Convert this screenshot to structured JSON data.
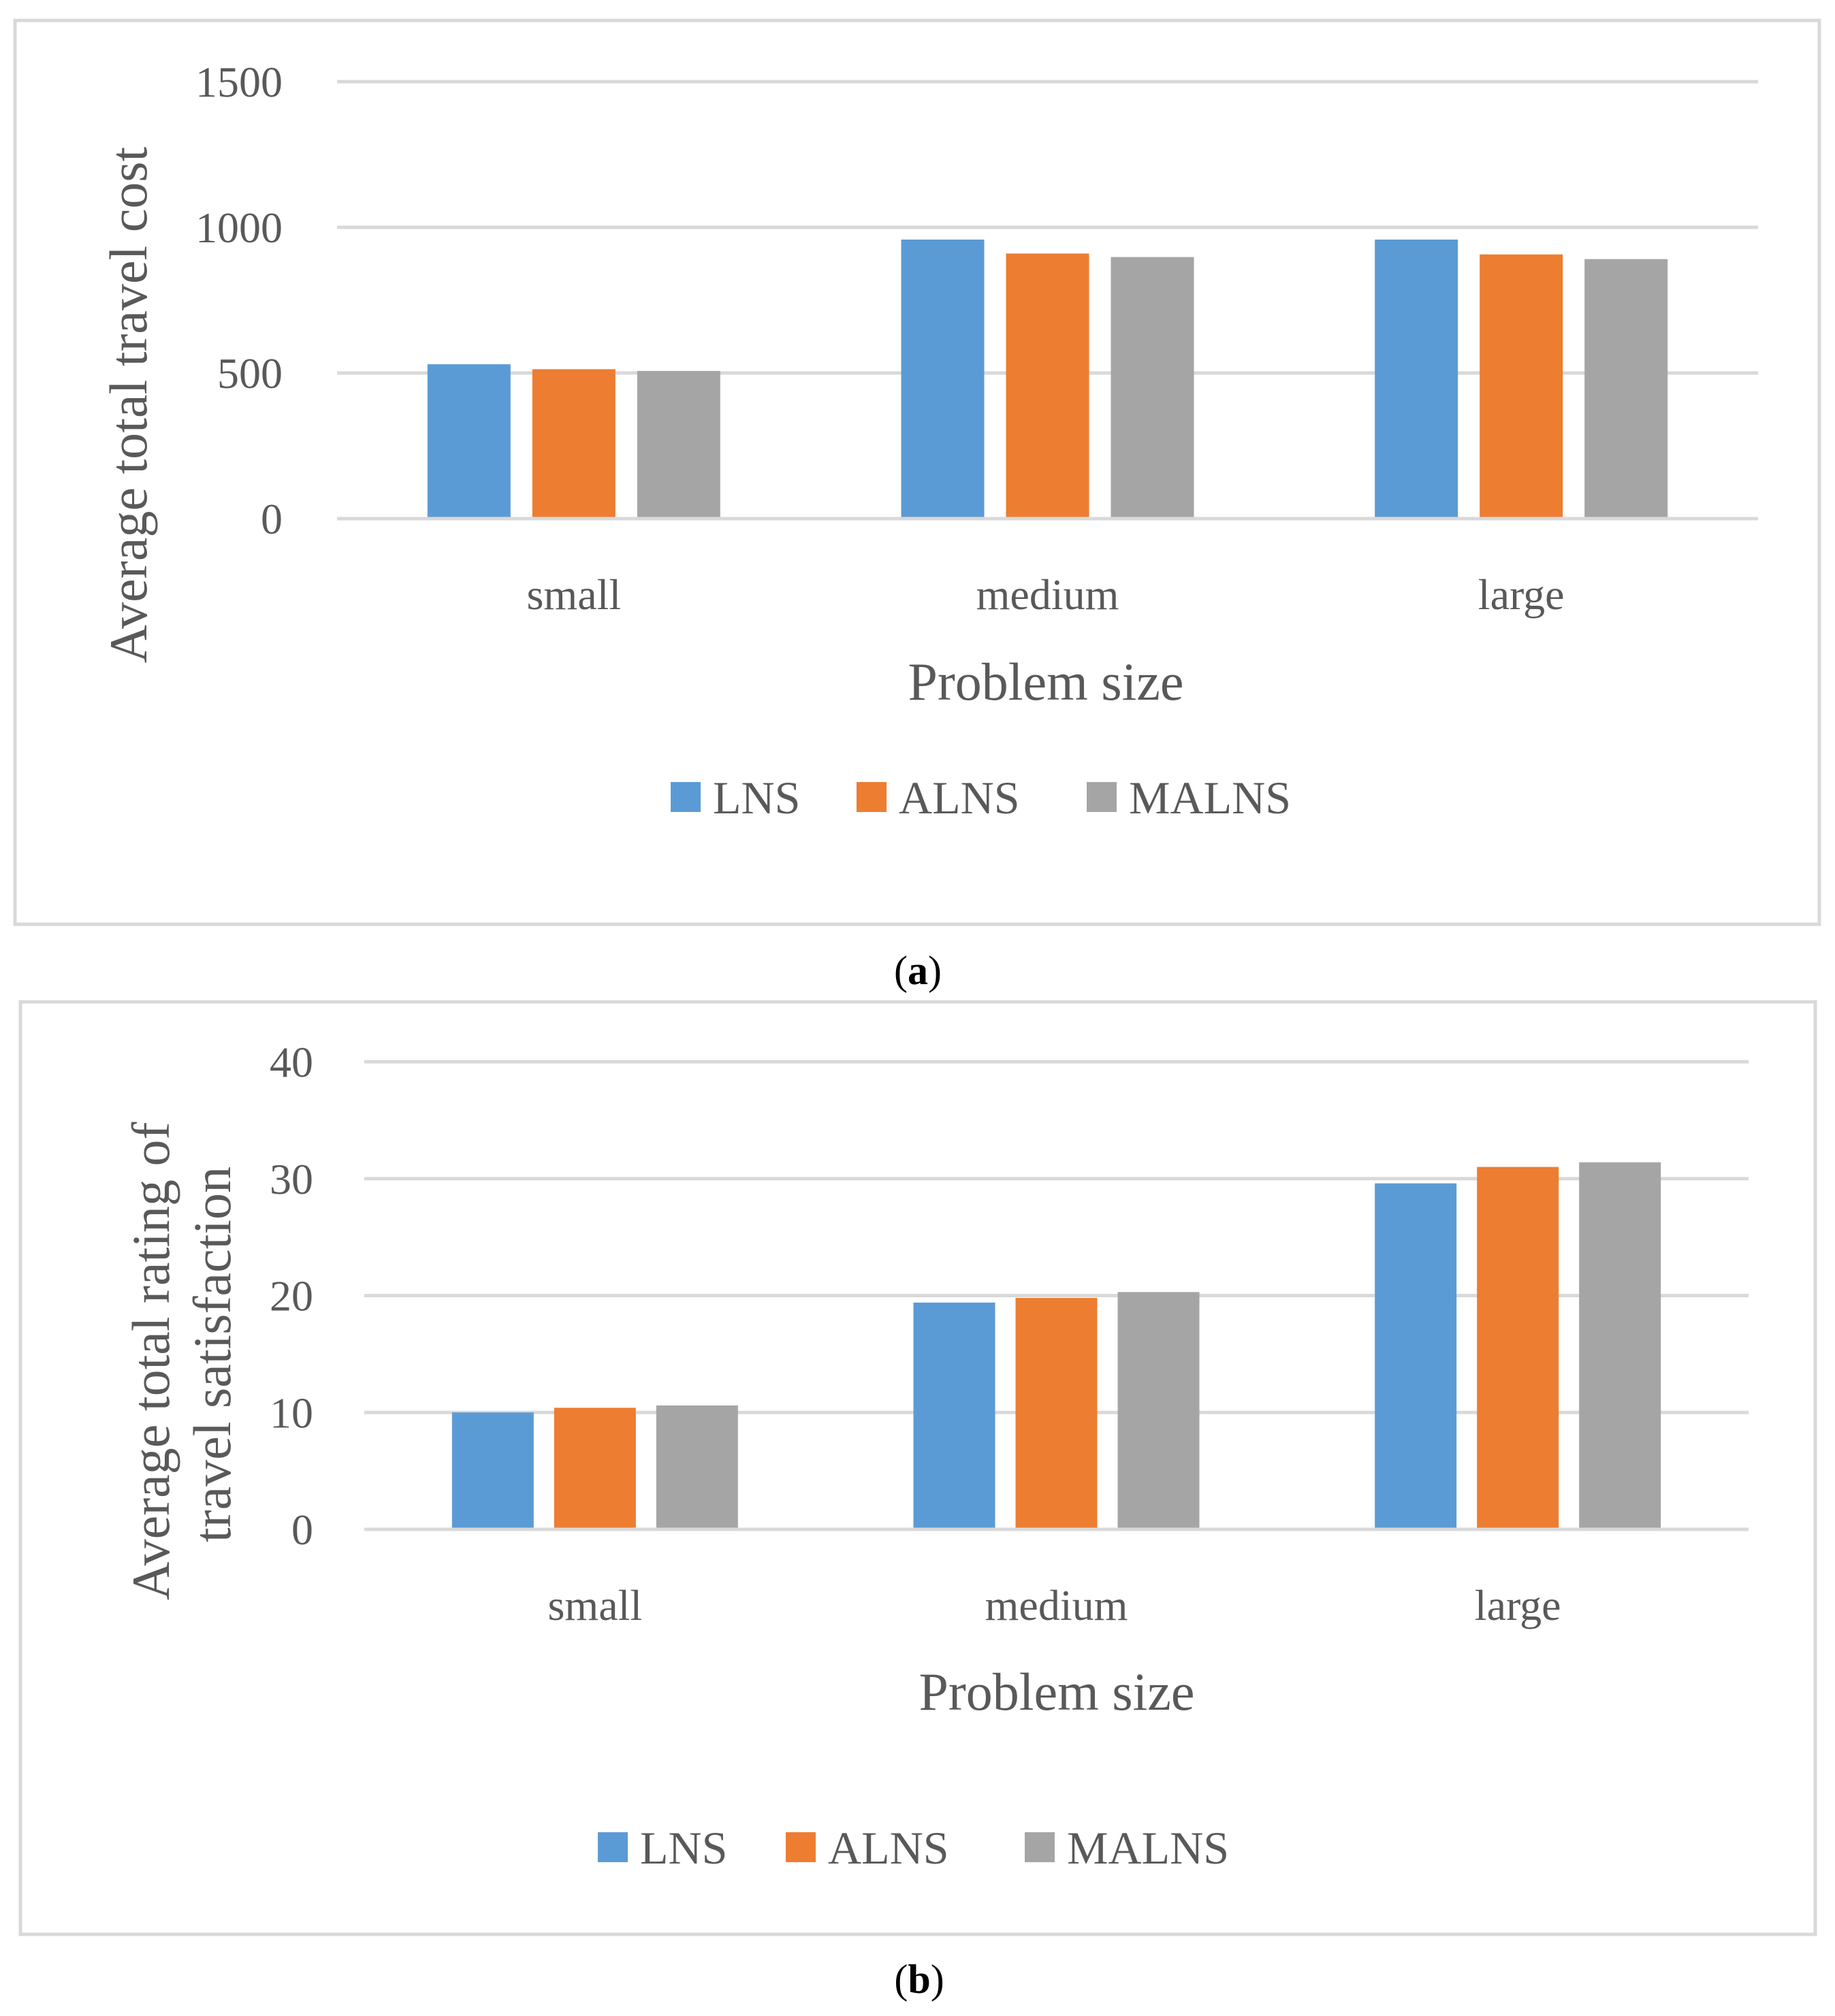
{
  "chart_data": [
    {
      "type": "bar",
      "panel_label": "a",
      "categories": [
        "small",
        "medium",
        "large"
      ],
      "series": [
        {
          "name": "LNS",
          "values": [
            530,
            958,
            958
          ],
          "color": "#5b9bd5"
        },
        {
          "name": "ALNS",
          "values": [
            513,
            910,
            907
          ],
          "color": "#ed7d31"
        },
        {
          "name": "MALNS",
          "values": [
            507,
            898,
            891
          ],
          "color": "#a5a5a5"
        }
      ],
      "xlabel": "Problem size",
      "ylabel": "Average total travel cost",
      "ylim": [
        0,
        1500
      ],
      "yticks": [
        "0",
        "500",
        "1000",
        "1500"
      ],
      "grid": true,
      "legend_position": "bottom"
    },
    {
      "type": "bar",
      "panel_label": "b",
      "categories": [
        "small",
        "medium",
        "large"
      ],
      "series": [
        {
          "name": "LNS",
          "values": [
            10.0,
            19.4,
            29.6
          ],
          "color": "#5b9bd5"
        },
        {
          "name": "ALNS",
          "values": [
            10.4,
            19.8,
            31.0
          ],
          "color": "#ed7d31"
        },
        {
          "name": "MALNS",
          "values": [
            10.6,
            20.3,
            31.4
          ],
          "color": "#a5a5a5"
        }
      ],
      "xlabel": "Problem size",
      "ylabel": "Average total rating of travel satisfaction",
      "ylabel_lines": [
        "Average total rating of",
        "travel satisfaction"
      ],
      "ylim": [
        0,
        40
      ],
      "yticks": [
        "0",
        "10",
        "20",
        "30",
        "40"
      ],
      "grid": true,
      "legend_position": "bottom"
    }
  ]
}
